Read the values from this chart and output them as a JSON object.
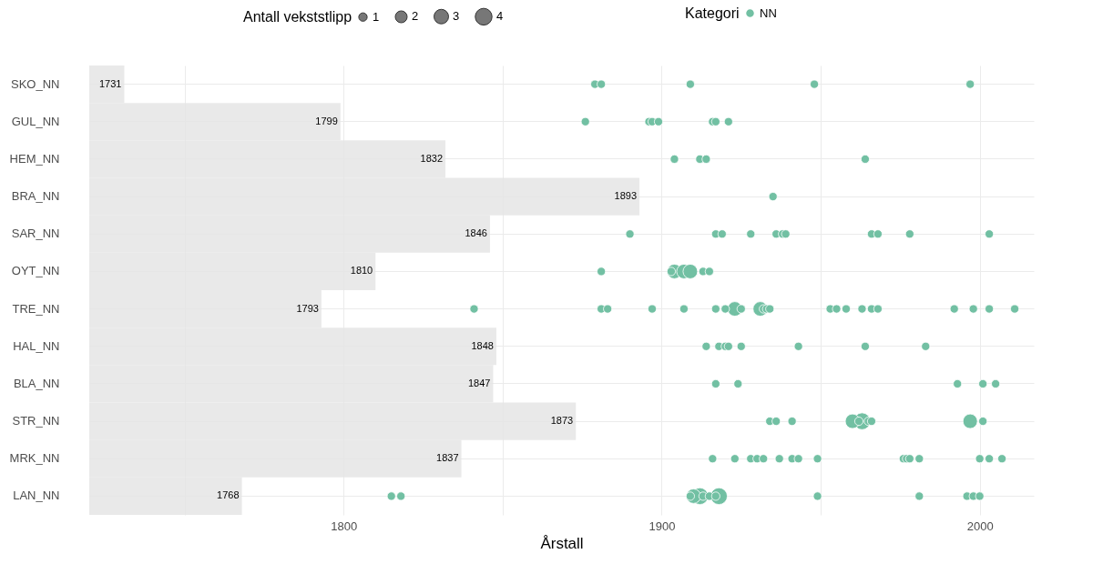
{
  "chart_data": {
    "type": "bar",
    "orientation": "horizontal",
    "xlabel": "Årstall",
    "legend_title": [
      "Antall vekststlipp",
      "Kategori"
    ],
    "categories": [
      "SKO_NN",
      "GUL_NN",
      "HEM_NN",
      "BRA_NN",
      "SAR_NN",
      "OYT_NN",
      "TRE_NN",
      "HAL_NN",
      "BLA_NN",
      "STR_NN",
      "MRK_NN",
      "LAN_NN"
    ],
    "xlim": [
      1720,
      2017
    ],
    "xticks": [
      {
        "value": 1750,
        "label": null
      },
      1800,
      {
        "value": 1850,
        "label": null
      },
      1900,
      {
        "value": 1950,
        "label": null
      },
      2000
    ],
    "grid": true,
    "legend": "top",
    "size_legend": [
      1,
      2,
      3,
      4
    ],
    "marker": "circle",
    "series": [
      {
        "color": "#e5e5e5",
        "values": [
          1731,
          1799,
          1832,
          1893,
          1846,
          1810,
          1793,
          1848,
          1847,
          1873,
          1837,
          1768
        ],
        "value_labels": [
          "1731",
          "1799",
          "1832",
          "1893",
          "1846",
          "1810",
          "1793",
          "1848",
          "1847",
          "1873",
          "1837",
          "1768"
        ]
      },
      {
        "type": "scatter",
        "name": "NN",
        "color": "#72c0a3",
        "x": [
          "SKO_NN",
          "SKO_NN",
          "SKO_NN",
          "SKO_NN",
          "SKO_NN",
          "GUL_NN",
          "GUL_NN",
          "GUL_NN",
          "GUL_NN",
          "GUL_NN",
          "GUL_NN",
          "GUL_NN",
          "HEM_NN",
          "HEM_NN",
          "HEM_NN",
          "HEM_NN",
          "BRA_NN",
          "SAR_NN",
          "SAR_NN",
          "SAR_NN",
          "SAR_NN",
          "SAR_NN",
          "SAR_NN",
          "SAR_NN",
          "SAR_NN",
          "SAR_NN",
          "SAR_NN",
          "SAR_NN",
          "OYT_NN",
          "OYT_NN",
          "OYT_NN",
          "OYT_NN",
          "OYT_NN",
          "OYT_NN",
          "OYT_NN",
          "TRE_NN",
          "TRE_NN",
          "TRE_NN",
          "TRE_NN",
          "TRE_NN",
          "TRE_NN",
          "TRE_NN",
          "TRE_NN",
          "TRE_NN",
          "TRE_NN",
          "TRE_NN",
          "TRE_NN",
          "TRE_NN",
          "TRE_NN",
          "TRE_NN",
          "TRE_NN",
          "TRE_NN",
          "TRE_NN",
          "TRE_NN",
          "TRE_NN",
          "TRE_NN",
          "TRE_NN",
          "TRE_NN",
          "HAL_NN",
          "HAL_NN",
          "HAL_NN",
          "HAL_NN",
          "HAL_NN",
          "HAL_NN",
          "HAL_NN",
          "HAL_NN",
          "BLA_NN",
          "BLA_NN",
          "BLA_NN",
          "BLA_NN",
          "BLA_NN",
          "STR_NN",
          "STR_NN",
          "STR_NN",
          "STR_NN",
          "STR_NN",
          "STR_NN",
          "STR_NN",
          "STR_NN",
          "STR_NN",
          "STR_NN",
          "MRK_NN",
          "MRK_NN",
          "MRK_NN",
          "MRK_NN",
          "MRK_NN",
          "MRK_NN",
          "MRK_NN",
          "MRK_NN",
          "MRK_NN",
          "MRK_NN",
          "MRK_NN",
          "MRK_NN",
          "MRK_NN",
          "MRK_NN",
          "MRK_NN",
          "MRK_NN",
          "LAN_NN",
          "LAN_NN",
          "LAN_NN",
          "LAN_NN",
          "LAN_NN",
          "LAN_NN",
          "LAN_NN",
          "LAN_NN",
          "LAN_NN",
          "LAN_NN",
          "LAN_NN",
          "LAN_NN",
          "LAN_NN",
          "LAN_NN"
        ],
        "values": [
          1879,
          1881,
          1909,
          1948,
          1997,
          1876,
          1896,
          1897,
          1899,
          1916,
          1917,
          1921,
          1904,
          1912,
          1914,
          1964,
          1935,
          1890,
          1917,
          1919,
          1928,
          1936,
          1938,
          1939,
          1966,
          1968,
          1978,
          2003,
          1881,
          1903,
          1904,
          1907,
          1909,
          1913,
          1915,
          1841,
          1881,
          1883,
          1897,
          1907,
          1917,
          1920,
          1923,
          1925,
          1931,
          1932,
          1933,
          1934,
          1953,
          1955,
          1958,
          1963,
          1966,
          1968,
          1992,
          1998,
          2003,
          2011,
          1914,
          1918,
          1920,
          1921,
          1925,
          1943,
          1964,
          1983,
          1917,
          1924,
          1993,
          2001,
          2005,
          1934,
          1936,
          1941,
          1960,
          1962,
          1963,
          1965,
          1966,
          1997,
          2001,
          1916,
          1923,
          1928,
          1930,
          1932,
          1937,
          1941,
          1943,
          1949,
          1976,
          1977,
          1978,
          1981,
          2000,
          2003,
          2007,
          1815,
          1818,
          1909,
          1910,
          1912,
          1913,
          1915,
          1917,
          1918,
          1949,
          1981,
          1996,
          1998,
          2000
        ],
        "sizes": [
          1,
          1,
          1,
          1,
          1,
          1,
          1,
          1,
          1,
          1,
          1,
          1,
          1,
          1,
          1,
          1,
          1,
          1,
          1,
          1,
          1,
          1,
          1,
          1,
          1,
          1,
          1,
          1,
          1,
          1,
          3,
          3,
          3,
          1,
          1,
          1,
          1,
          1,
          1,
          1,
          1,
          1,
          3,
          1,
          3,
          1,
          1,
          1,
          1,
          1,
          1,
          1,
          1,
          1,
          1,
          1,
          1,
          1,
          1,
          1,
          1,
          1,
          1,
          1,
          1,
          1,
          1,
          1,
          1,
          1,
          1,
          1,
          1,
          1,
          3,
          1,
          4,
          1,
          1,
          3,
          1,
          1,
          1,
          1,
          1,
          1,
          1,
          1,
          1,
          1,
          1,
          1,
          1,
          1,
          1,
          1,
          1,
          1,
          1,
          1,
          3,
          4,
          1,
          1,
          1,
          4,
          1,
          1,
          1,
          1,
          1
        ]
      }
    ]
  }
}
